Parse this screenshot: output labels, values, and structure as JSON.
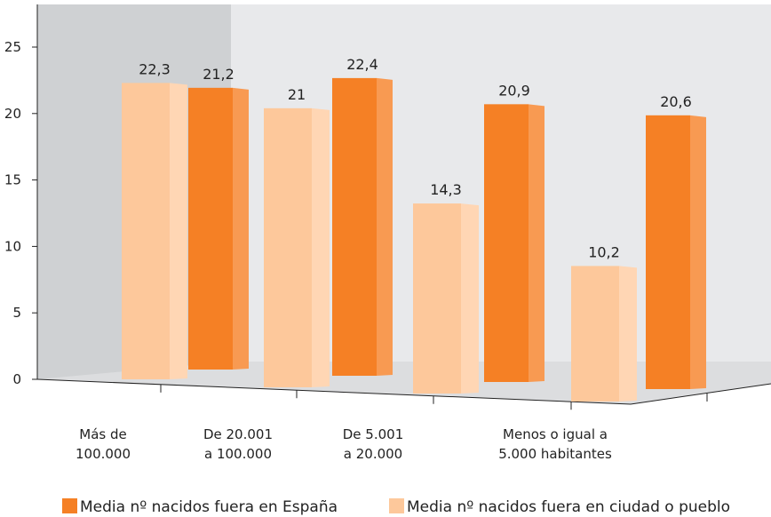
{
  "chart_data": {
    "type": "bar",
    "categories": [
      [
        "Más de",
        "100.000"
      ],
      [
        "De 20.001",
        "a 100.000"
      ],
      [
        "De 5.001",
        "a 20.000"
      ],
      [
        "Menos o igual a",
        "5.000 habitantes"
      ]
    ],
    "series": [
      {
        "name": "Media nº nacidos fuera en ciudad o pueblo",
        "values": [
          22.3,
          21,
          14.3,
          10.2
        ],
        "value_labels": [
          "22,3",
          "21",
          "14,3",
          "10,2"
        ],
        "color": "#fdc89b"
      },
      {
        "name": "Media nº nacidos fuera en España",
        "values": [
          21.2,
          22.4,
          20.9,
          20.6
        ],
        "value_labels": [
          "21,2",
          "22,4",
          "20,9",
          "20,6"
        ],
        "color": "#f58025"
      }
    ],
    "legend_order": [
      1,
      0
    ],
    "legend": "bottom",
    "ylim": [
      0,
      25
    ],
    "yticks": [
      0,
      5,
      10,
      15,
      20,
      25
    ],
    "grid": false,
    "colors": {
      "panel_left": "#cfd1d3",
      "panel_right": "#e8e9eb",
      "floor": "#dcdddf"
    }
  }
}
